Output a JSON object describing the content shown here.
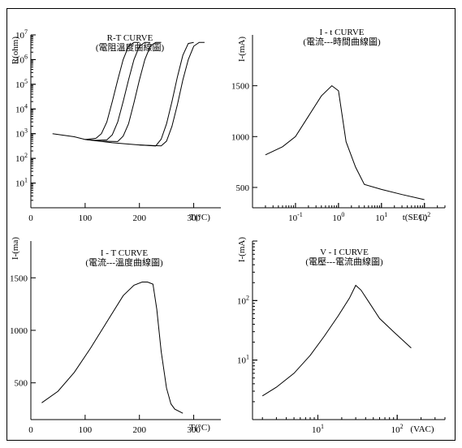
{
  "chart_data": [
    {
      "type": "line",
      "title": "R-T  CURVE",
      "subtitle": "(電阻溫度曲線圖)",
      "xlabel": "T(°C)",
      "ylabel": "R(ohm)",
      "xscale": "linear",
      "yscale": "log",
      "xlim": [
        0,
        350
      ],
      "ylim": [
        1,
        10000000
      ],
      "x_ticks": [
        {
          "value": 0,
          "label": "0"
        },
        {
          "value": 100,
          "label": "100"
        },
        {
          "value": 200,
          "label": "200"
        },
        {
          "value": 300,
          "label": "300"
        }
      ],
      "y_ticks": [
        {
          "value": 10,
          "base": "10",
          "exp": "1"
        },
        {
          "value": 100,
          "base": "10",
          "exp": "2"
        },
        {
          "value": 1000,
          "base": "10",
          "exp": "3"
        },
        {
          "value": 10000,
          "base": "10",
          "exp": "4"
        },
        {
          "value": 100000,
          "base": "10",
          "exp": "5"
        },
        {
          "value": 1000000,
          "base": "10",
          "exp": "6"
        },
        {
          "value": 10000000,
          "base": "10",
          "exp": "7"
        }
      ],
      "grid": false,
      "series": [
        {
          "x": [
            40,
            80,
            100,
            120,
            130,
            140,
            150,
            160,
            170,
            180,
            190,
            200
          ],
          "y": [
            1000,
            750,
            580,
            650,
            1000,
            3000,
            20000,
            150000,
            1000000,
            3500000,
            5000000,
            5000000
          ]
        },
        {
          "x": [
            100,
            120,
            140,
            150,
            160,
            170,
            180,
            190,
            200,
            210,
            220
          ],
          "y": [
            580,
            540,
            560,
            900,
            3000,
            20000,
            150000,
            1000000,
            3500000,
            5000000,
            5000000
          ]
        },
        {
          "x": [
            100,
            130,
            160,
            170,
            180,
            190,
            200,
            210,
            220,
            230,
            240
          ],
          "y": [
            580,
            500,
            480,
            800,
            2500,
            18000,
            150000,
            1000000,
            3500000,
            5000000,
            5000000
          ]
        },
        {
          "x": [
            100,
            150,
            200,
            230,
            240,
            250,
            260,
            270,
            280,
            290,
            300
          ],
          "y": [
            580,
            430,
            350,
            320,
            600,
            2500,
            20000,
            200000,
            1500000,
            4500000,
            5000000
          ]
        },
        {
          "x": [
            200,
            240,
            250,
            260,
            270,
            280,
            290,
            300,
            310,
            320
          ],
          "y": [
            350,
            320,
            500,
            2000,
            15000,
            150000,
            1000000,
            3500000,
            5000000,
            5000000
          ]
        }
      ]
    },
    {
      "type": "line",
      "title": "I - t  CURVE",
      "subtitle": "(電流---時間曲線圖)",
      "xlabel": "t(SEC)",
      "ylabel": "I-(mA)",
      "xscale": "log",
      "yscale": "linear",
      "xlim": [
        0.01,
        300
      ],
      "ylim": [
        300,
        2000
      ],
      "x_ticks": [
        {
          "value": 0.1,
          "base": "10",
          "exp": "-1"
        },
        {
          "value": 1,
          "base": "10",
          "exp": "0"
        },
        {
          "value": 10,
          "base": "10",
          "exp": "1"
        },
        {
          "value": 100,
          "base": "10",
          "exp": "2"
        }
      ],
      "y_ticks": [
        {
          "value": 500,
          "label": "500"
        },
        {
          "value": 1000,
          "label": "1000"
        },
        {
          "value": 1500,
          "label": "1500"
        }
      ],
      "grid": false,
      "series": [
        {
          "x": [
            0.02,
            0.05,
            0.1,
            0.2,
            0.4,
            0.7,
            1,
            1.5,
            2.5,
            4,
            10,
            30,
            100
          ],
          "y": [
            820,
            900,
            1000,
            1200,
            1400,
            1500,
            1450,
            950,
            700,
            530,
            480,
            430,
            380
          ]
        }
      ]
    },
    {
      "type": "line",
      "title": "I - T  CURVE",
      "subtitle": "(電流---溫度曲線圖)",
      "xlabel": "T(°C)",
      "ylabel": "I-(ma)",
      "xscale": "linear",
      "yscale": "linear",
      "xlim": [
        0,
        350
      ],
      "ylim": [
        150,
        1850
      ],
      "x_ticks": [
        {
          "value": 0,
          "label": "0"
        },
        {
          "value": 100,
          "label": "100"
        },
        {
          "value": 200,
          "label": "200"
        },
        {
          "value": 300,
          "label": "300"
        }
      ],
      "y_ticks": [
        {
          "value": 500,
          "label": "500"
        },
        {
          "value": 1000,
          "label": "1000"
        },
        {
          "value": 1500,
          "label": "1500"
        }
      ],
      "grid": false,
      "series": [
        {
          "x": [
            20,
            50,
            80,
            110,
            140,
            170,
            190,
            205,
            215,
            225,
            232,
            240,
            250,
            258,
            265,
            280
          ],
          "y": [
            310,
            420,
            600,
            830,
            1080,
            1330,
            1430,
            1460,
            1460,
            1440,
            1200,
            800,
            450,
            300,
            250,
            210
          ]
        }
      ]
    },
    {
      "type": "line",
      "title": "V - I  CURVE",
      "subtitle": "(電壓---電流曲線圖)",
      "xlabel": "(VAC)",
      "ylabel": "I-(mA)",
      "xscale": "log",
      "yscale": "log",
      "xlim": [
        1.5,
        400
      ],
      "ylim": [
        1,
        1000
      ],
      "x_ticks": [
        {
          "value": 10,
          "base": "10",
          "exp": "1"
        },
        {
          "value": 100,
          "base": "10",
          "exp": "2"
        }
      ],
      "y_ticks": [
        {
          "value": 10,
          "base": "10",
          "exp": "1"
        },
        {
          "value": 100,
          "base": "10",
          "exp": "2"
        }
      ],
      "grid": false,
      "series": [
        {
          "x": [
            2,
            3,
            5,
            8,
            12,
            18,
            25,
            30,
            35,
            45,
            60,
            90,
            150
          ],
          "y": [
            2.5,
            3.5,
            6,
            12,
            25,
            55,
            110,
            180,
            150,
            90,
            50,
            30,
            16
          ]
        }
      ]
    }
  ]
}
